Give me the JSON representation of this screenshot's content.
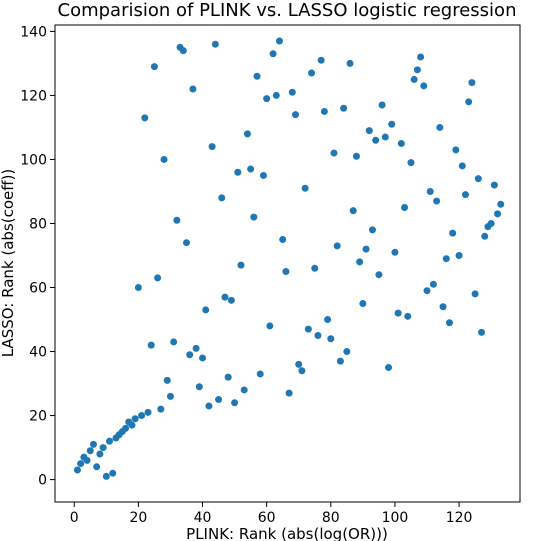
{
  "chart_data": {
    "type": "scatter",
    "title": "Comparision of PLINK vs. LASSO logistic regression",
    "xlabel": "PLINK: Rank (abs(log(OR)))",
    "ylabel": "LASSO: Rank (abs(coeff))",
    "xlim": [
      -6,
      139
    ],
    "ylim": [
      -7,
      142
    ],
    "x_ticks": [
      0,
      20,
      40,
      60,
      80,
      100,
      120
    ],
    "y_ticks": [
      0,
      20,
      40,
      60,
      80,
      100,
      120,
      140
    ],
    "grid": false,
    "marker_color": "#1f77b4",
    "points": [
      [
        1,
        3
      ],
      [
        2,
        5
      ],
      [
        3,
        7
      ],
      [
        4,
        6
      ],
      [
        5,
        9
      ],
      [
        6,
        11
      ],
      [
        7,
        4
      ],
      [
        8,
        8
      ],
      [
        9,
        10
      ],
      [
        10,
        1
      ],
      [
        11,
        12
      ],
      [
        12,
        2
      ],
      [
        13,
        13
      ],
      [
        14,
        14
      ],
      [
        15,
        15
      ],
      [
        16,
        16
      ],
      [
        17,
        18
      ],
      [
        18,
        17
      ],
      [
        19,
        19
      ],
      [
        20,
        60
      ],
      [
        21,
        20
      ],
      [
        22,
        113
      ],
      [
        23,
        21
      ],
      [
        24,
        42
      ],
      [
        25,
        129
      ],
      [
        26,
        63
      ],
      [
        27,
        22
      ],
      [
        28,
        100
      ],
      [
        29,
        31
      ],
      [
        30,
        26
      ],
      [
        31,
        43
      ],
      [
        32,
        81
      ],
      [
        33,
        135
      ],
      [
        34,
        134
      ],
      [
        35,
        74
      ],
      [
        36,
        39
      ],
      [
        37,
        122
      ],
      [
        38,
        41
      ],
      [
        39,
        29
      ],
      [
        40,
        38
      ],
      [
        41,
        53
      ],
      [
        42,
        23
      ],
      [
        43,
        104
      ],
      [
        44,
        136
      ],
      [
        45,
        25
      ],
      [
        46,
        88
      ],
      [
        47,
        57
      ],
      [
        48,
        32
      ],
      [
        49,
        56
      ],
      [
        50,
        24
      ],
      [
        51,
        96
      ],
      [
        52,
        67
      ],
      [
        53,
        28
      ],
      [
        54,
        108
      ],
      [
        55,
        97
      ],
      [
        56,
        82
      ],
      [
        57,
        126
      ],
      [
        58,
        33
      ],
      [
        59,
        95
      ],
      [
        60,
        119
      ],
      [
        61,
        48
      ],
      [
        62,
        133
      ],
      [
        63,
        120
      ],
      [
        64,
        137
      ],
      [
        65,
        75
      ],
      [
        66,
        65
      ],
      [
        67,
        27
      ],
      [
        68,
        121
      ],
      [
        69,
        114
      ],
      [
        70,
        36
      ],
      [
        71,
        34
      ],
      [
        72,
        91
      ],
      [
        73,
        47
      ],
      [
        74,
        127
      ],
      [
        75,
        66
      ],
      [
        76,
        45
      ],
      [
        77,
        131
      ],
      [
        78,
        115
      ],
      [
        79,
        50
      ],
      [
        80,
        44
      ],
      [
        81,
        102
      ],
      [
        82,
        73
      ],
      [
        83,
        37
      ],
      [
        84,
        116
      ],
      [
        85,
        40
      ],
      [
        86,
        130
      ],
      [
        87,
        84
      ],
      [
        88,
        101
      ],
      [
        89,
        68
      ],
      [
        90,
        55
      ],
      [
        91,
        72
      ],
      [
        92,
        109
      ],
      [
        93,
        78
      ],
      [
        94,
        106
      ],
      [
        95,
        64
      ],
      [
        96,
        117
      ],
      [
        97,
        107
      ],
      [
        98,
        35
      ],
      [
        99,
        111
      ],
      [
        100,
        71
      ],
      [
        101,
        52
      ],
      [
        102,
        105
      ],
      [
        103,
        85
      ],
      [
        104,
        51
      ],
      [
        105,
        99
      ],
      [
        106,
        125
      ],
      [
        107,
        128
      ],
      [
        108,
        132
      ],
      [
        109,
        123
      ],
      [
        110,
        59
      ],
      [
        111,
        90
      ],
      [
        112,
        61
      ],
      [
        113,
        87
      ],
      [
        114,
        110
      ],
      [
        115,
        54
      ],
      [
        116,
        69
      ],
      [
        117,
        49
      ],
      [
        118,
        77
      ],
      [
        119,
        103
      ],
      [
        120,
        70
      ],
      [
        121,
        98
      ],
      [
        122,
        89
      ],
      [
        123,
        118
      ],
      [
        124,
        124
      ],
      [
        125,
        58
      ],
      [
        126,
        94
      ],
      [
        127,
        46
      ],
      [
        128,
        76
      ],
      [
        129,
        79
      ],
      [
        130,
        80
      ],
      [
        131,
        92
      ],
      [
        132,
        83
      ],
      [
        133,
        86
      ]
    ]
  }
}
